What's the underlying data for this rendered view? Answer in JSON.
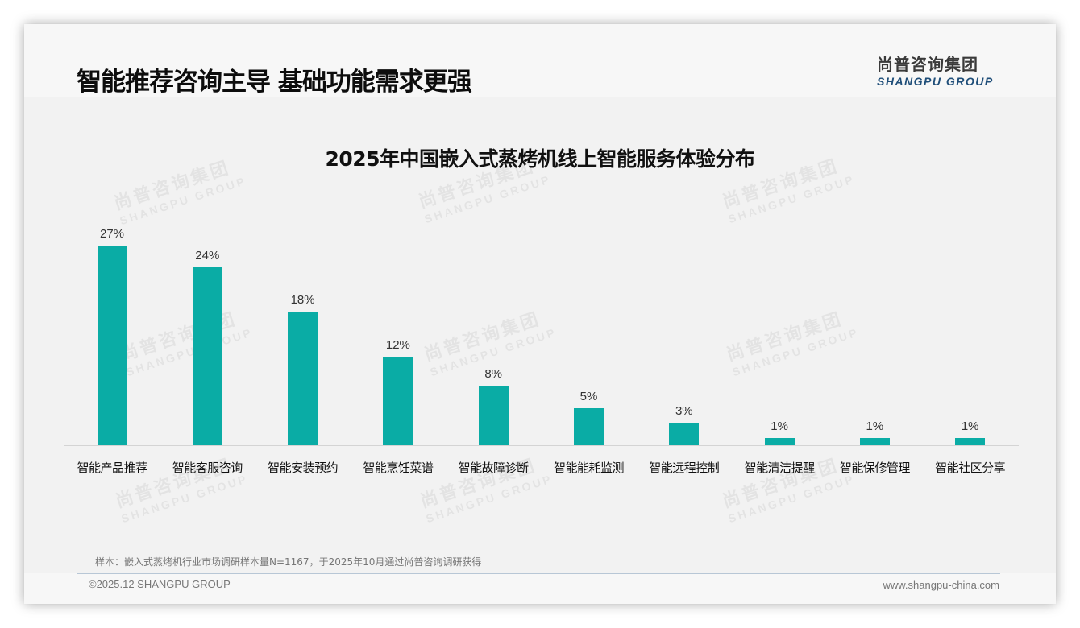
{
  "header": {
    "title": "智能推荐咨询主导 基础功能需求更强",
    "logo_cn": "尚普咨询集团",
    "logo_en": "SHANGPU GROUP"
  },
  "watermark": {
    "cn": "尚普咨询集团",
    "en": "SHANGPU GROUP"
  },
  "colors": {
    "bar": "#0aaca5",
    "logo_en": "#1f4e79"
  },
  "chart_data": {
    "type": "bar",
    "title": "2025年中国嵌入式蒸烤机线上智能服务体验分布",
    "categories": [
      "智能产品推荐",
      "智能客服咨询",
      "智能安装预约",
      "智能烹饪菜谱",
      "智能故障诊断",
      "智能能耗监测",
      "智能远程控制",
      "智能清洁提醒",
      "智能保修管理",
      "智能社区分享"
    ],
    "values": [
      27,
      24,
      18,
      12,
      8,
      5,
      3,
      1,
      1,
      1
    ],
    "value_labels": [
      "27%",
      "24%",
      "18%",
      "12%",
      "8%",
      "5%",
      "3%",
      "1%",
      "1%",
      "1%"
    ],
    "unit": "%",
    "xlabel": "",
    "ylabel": "",
    "ylim": [
      0,
      30
    ],
    "grid": false,
    "legend": "none",
    "color": "#0aaca5"
  },
  "footer": {
    "source_note": "样本：嵌入式蒸烤机行业市场调研样本量N=1167，于2025年10月通过尚普咨询调研获得",
    "copyright": "©2025.12 SHANGPU GROUP",
    "website": "www.shangpu-china.com"
  }
}
